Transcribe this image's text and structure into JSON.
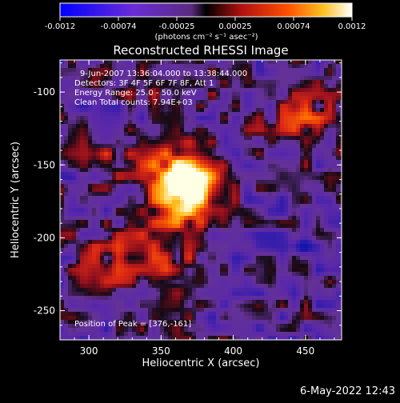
{
  "colorbar": {
    "ticks": [
      "-0.0012",
      "-0.00074",
      "-0.00025",
      "0.00025",
      "0.00074",
      "0.0012"
    ],
    "unit_label": "(photons cm⁻² s⁻¹ asec⁻²)"
  },
  "title": "Reconstructed RHESSI Image",
  "info": {
    "line1": "9-Jun-2007 13:36:04.000 to 13:38:44.000",
    "line2": "Detectors: 3F 4F 5F 6F 7F 8F, Att 1",
    "line3": "Energy Range: 25.0 - 50.0 keV",
    "line4": "Clean    Total counts: 7.94E+03"
  },
  "peak_label": "Position of Peak = [376,-161]",
  "xaxis": {
    "label": "Heliocentric X (arcsec)",
    "ticks": [
      "300",
      "350",
      "400",
      "450"
    ],
    "range": [
      280,
      475
    ]
  },
  "yaxis": {
    "label": "Heliocentric Y (arcsec)",
    "ticks": [
      "-100",
      "-150",
      "-200",
      "-250"
    ],
    "range": [
      -270,
      -78
    ]
  },
  "timestamp": "6-May-2022 12:43",
  "colors": {
    "background": "#000000",
    "low": "#0000ff",
    "mid_low": "#7a40c8",
    "mid": "#d02020",
    "high": "#ff9900",
    "peak": "#ffffff"
  }
}
